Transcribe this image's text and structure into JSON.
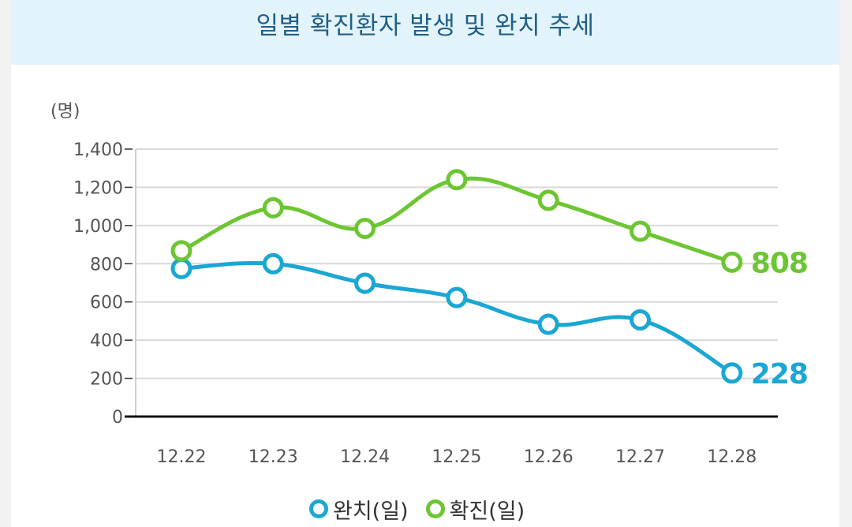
{
  "chart_data": {
    "type": "line",
    "title": "일별 확진환자 발생 및 완치 추세",
    "ylabel": "(명)",
    "xlabel": "",
    "ylim": [
      0,
      1400
    ],
    "yticks": [
      {
        "value": 0,
        "label": "0"
      },
      {
        "value": 200,
        "label": "200"
      },
      {
        "value": 400,
        "label": "400"
      },
      {
        "value": 600,
        "label": "600"
      },
      {
        "value": 800,
        "label": "800"
      },
      {
        "value": 1000,
        "label": "1,000"
      },
      {
        "value": 1200,
        "label": "1,200"
      },
      {
        "value": 1400,
        "label": "1,400"
      }
    ],
    "categories": [
      "12.22",
      "12.23",
      "12.24",
      "12.25",
      "12.26",
      "12.27",
      "12.28"
    ],
    "series": [
      {
        "name": "완치(일)",
        "color": "#1aa7d3",
        "values": [
          775,
          800,
          698,
          623,
          483,
          506,
          228
        ],
        "end_label": "228"
      },
      {
        "name": "확진(일)",
        "color": "#6cc631",
        "values": [
          868,
          1093,
          985,
          1240,
          1132,
          970,
          808
        ],
        "end_label": "808"
      }
    ],
    "grid": true,
    "legend": "bottom"
  }
}
